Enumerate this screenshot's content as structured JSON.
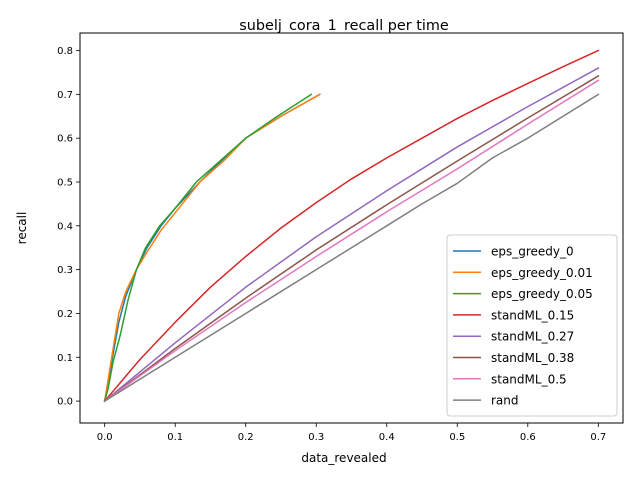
{
  "chart_data": {
    "type": "line",
    "title": "subelj_cora_1_recall per time",
    "xlabel": "data_revealed",
    "ylabel": "recall",
    "xlim": [
      -0.035,
      0.735
    ],
    "ylim": [
      -0.05,
      0.84
    ],
    "xticks": [
      0.0,
      0.1,
      0.2,
      0.3,
      0.4,
      0.5,
      0.6,
      0.7
    ],
    "xtick_labels": [
      "0.0",
      "0.1",
      "0.2",
      "0.3",
      "0.4",
      "0.5",
      "0.6",
      "0.7"
    ],
    "yticks": [
      0.0,
      0.1,
      0.2,
      0.3,
      0.4,
      0.5,
      0.6,
      0.7,
      0.8
    ],
    "ytick_labels": [
      "0.0",
      "0.1",
      "0.2",
      "0.3",
      "0.4",
      "0.5",
      "0.6",
      "0.7",
      "0.8"
    ],
    "grid": false,
    "legend_position": "lower-right",
    "series": [
      {
        "name": "eps_greedy_0",
        "color": "#1f77b4",
        "x": [
          0.0,
          0.005,
          0.01,
          0.02,
          0.03,
          0.045,
          0.06,
          0.08,
          0.1,
          0.135,
          0.16,
          0.2,
          0.25,
          0.305
        ],
        "y": [
          0.0,
          0.04,
          0.09,
          0.18,
          0.24,
          0.3,
          0.35,
          0.4,
          0.44,
          0.5,
          0.54,
          0.6,
          0.65,
          0.7
        ]
      },
      {
        "name": "eps_greedy_0.01",
        "color": "#ff7f0e",
        "x": [
          0.0,
          0.005,
          0.01,
          0.02,
          0.03,
          0.045,
          0.06,
          0.08,
          0.1,
          0.135,
          0.17,
          0.2,
          0.25,
          0.305
        ],
        "y": [
          0.0,
          0.05,
          0.1,
          0.2,
          0.25,
          0.3,
          0.34,
          0.39,
          0.43,
          0.5,
          0.55,
          0.6,
          0.65,
          0.7
        ]
      },
      {
        "name": "eps_greedy_0.05",
        "color": "#2ca02c",
        "x": [
          0.0,
          0.005,
          0.012,
          0.022,
          0.033,
          0.045,
          0.058,
          0.078,
          0.1,
          0.13,
          0.165,
          0.2,
          0.245,
          0.293
        ],
        "y": [
          0.0,
          0.03,
          0.09,
          0.15,
          0.23,
          0.3,
          0.35,
          0.4,
          0.44,
          0.5,
          0.55,
          0.6,
          0.65,
          0.7
        ]
      },
      {
        "name": "standML_0.15",
        "color": "#d62728",
        "x": [
          0.0,
          0.05,
          0.1,
          0.15,
          0.2,
          0.25,
          0.3,
          0.35,
          0.4,
          0.45,
          0.5,
          0.55,
          0.6,
          0.65,
          0.7
        ],
        "y": [
          0.0,
          0.095,
          0.18,
          0.26,
          0.33,
          0.395,
          0.453,
          0.507,
          0.555,
          0.6,
          0.645,
          0.686,
          0.725,
          0.763,
          0.8
        ]
      },
      {
        "name": "standML_0.27",
        "color": "#9467bd",
        "x": [
          0.0,
          0.1,
          0.2,
          0.3,
          0.4,
          0.5,
          0.6,
          0.7
        ],
        "y": [
          0.0,
          0.133,
          0.26,
          0.375,
          0.48,
          0.58,
          0.672,
          0.76
        ]
      },
      {
        "name": "standML_0.38",
        "color": "#8c564b",
        "x": [
          0.0,
          0.1,
          0.2,
          0.3,
          0.4,
          0.5,
          0.6,
          0.7
        ],
        "y": [
          0.0,
          0.12,
          0.235,
          0.345,
          0.448,
          0.548,
          0.646,
          0.742
        ]
      },
      {
        "name": "standML_0.5",
        "color": "#e377c2",
        "x": [
          0.0,
          0.1,
          0.2,
          0.3,
          0.4,
          0.5,
          0.6,
          0.7
        ],
        "y": [
          0.0,
          0.115,
          0.225,
          0.33,
          0.432,
          0.53,
          0.632,
          0.732
        ]
      },
      {
        "name": "rand",
        "color": "#7f7f7f",
        "x": [
          0.0,
          0.1,
          0.2,
          0.3,
          0.35,
          0.4,
          0.45,
          0.5,
          0.55,
          0.6,
          0.7
        ],
        "y": [
          0.0,
          0.1,
          0.2,
          0.3,
          0.35,
          0.4,
          0.45,
          0.497,
          0.555,
          0.6,
          0.7
        ]
      }
    ]
  }
}
